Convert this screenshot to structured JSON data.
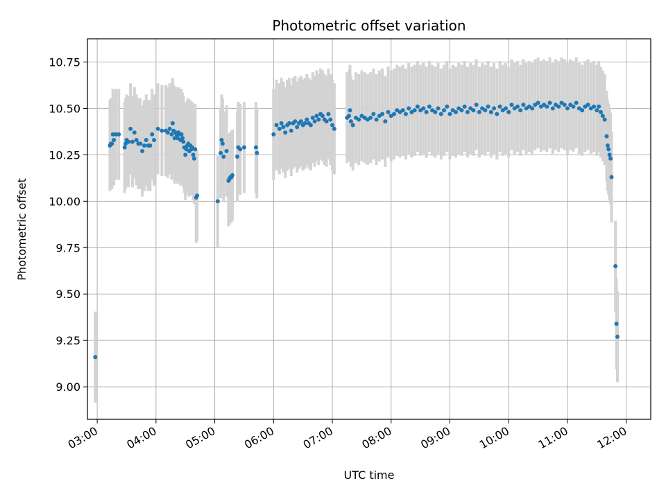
{
  "chart_data": {
    "type": "scatter",
    "title": "Photometric offset variation",
    "xlabel": "UTC time",
    "ylabel": "Photometric offset",
    "xlim": [
      "02:50",
      "12:25"
    ],
    "ylim": [
      8.825,
      10.875
    ],
    "grid": true,
    "x_ticks": [
      "03:00",
      "04:00",
      "05:00",
      "06:00",
      "07:00",
      "08:00",
      "09:00",
      "10:00",
      "11:00",
      "12:00"
    ],
    "y_ticks": [
      "9.00",
      "9.25",
      "9.50",
      "9.75",
      "10.00",
      "10.25",
      "10.50",
      "10.75"
    ],
    "colors": {
      "points": "#1f77b4",
      "error_bars": "#d3d3d3",
      "grid": "#b0b0b0"
    },
    "series": [
      {
        "error_bar_halfwidth": 0.245,
        "points": [
          [
            "02:58",
            9.16
          ],
          [
            "03:13",
            10.3
          ],
          [
            "03:14",
            10.31
          ],
          [
            "03:15",
            10.31
          ],
          [
            "03:16",
            10.36
          ],
          [
            "03:17",
            10.33
          ],
          [
            "03:19",
            10.36
          ],
          [
            "03:22",
            10.36
          ],
          [
            "03:28",
            10.29
          ],
          [
            "03:29",
            10.31
          ],
          [
            "03:30",
            10.33
          ],
          [
            "03:32",
            10.32
          ],
          [
            "03:34",
            10.39
          ],
          [
            "03:36",
            10.32
          ],
          [
            "03:38",
            10.37
          ],
          [
            "03:40",
            10.33
          ],
          [
            "03:42",
            10.31
          ],
          [
            "03:44",
            10.31
          ],
          [
            "03:46",
            10.27
          ],
          [
            "03:48",
            10.3
          ],
          [
            "03:50",
            10.33
          ],
          [
            "03:52",
            10.3
          ],
          [
            "03:54",
            10.3
          ],
          [
            "03:56",
            10.36
          ],
          [
            "03:58",
            10.33
          ],
          [
            "04:02",
            10.39
          ],
          [
            "04:06",
            10.38
          ],
          [
            "04:10",
            10.38
          ],
          [
            "04:12",
            10.37
          ],
          [
            "04:14",
            10.39
          ],
          [
            "04:16",
            10.36
          ],
          [
            "04:17",
            10.42
          ],
          [
            "04:18",
            10.38
          ],
          [
            "04:19",
            10.34
          ],
          [
            "04:20",
            10.37
          ],
          [
            "04:21",
            10.36
          ],
          [
            "04:22",
            10.34
          ],
          [
            "04:23",
            10.37
          ],
          [
            "04:24",
            10.36
          ],
          [
            "04:25",
            10.33
          ],
          [
            "04:26",
            10.36
          ],
          [
            "04:27",
            10.34
          ],
          [
            "04:28",
            10.32
          ],
          [
            "04:29",
            10.29
          ],
          [
            "04:30",
            10.25
          ],
          [
            "04:31",
            10.28
          ],
          [
            "04:32",
            10.3
          ],
          [
            "04:33",
            10.31
          ],
          [
            "04:34",
            10.27
          ],
          [
            "04:35",
            10.3
          ],
          [
            "04:36",
            10.28
          ],
          [
            "04:37",
            10.29
          ],
          [
            "04:38",
            10.25
          ],
          [
            "04:39",
            10.23
          ],
          [
            "04:40",
            10.28
          ],
          [
            "04:41",
            10.02
          ],
          [
            "04:42",
            10.03
          ],
          [
            "05:03",
            10.0
          ],
          [
            "05:06",
            10.26
          ],
          [
            "05:07",
            10.33
          ],
          [
            "05:08",
            10.31
          ],
          [
            "05:09",
            10.24
          ],
          [
            "05:12",
            10.27
          ],
          [
            "05:14",
            10.11
          ],
          [
            "05:15",
            10.12
          ],
          [
            "05:16",
            10.13
          ],
          [
            "05:17",
            10.13
          ],
          [
            "05:18",
            10.14
          ],
          [
            "05:23",
            10.24
          ],
          [
            "05:24",
            10.29
          ],
          [
            "05:26",
            10.28
          ],
          [
            "05:30",
            10.29
          ],
          [
            "05:42",
            10.29
          ],
          [
            "05:43",
            10.26
          ],
          [
            "06:00",
            10.36
          ],
          [
            "06:03",
            10.41
          ],
          [
            "06:06",
            10.39
          ],
          [
            "06:08",
            10.42
          ],
          [
            "06:10",
            10.4
          ],
          [
            "06:12",
            10.37
          ],
          [
            "06:14",
            10.41
          ],
          [
            "06:16",
            10.42
          ],
          [
            "06:18",
            10.38
          ],
          [
            "06:20",
            10.42
          ],
          [
            "06:22",
            10.43
          ],
          [
            "06:24",
            10.4
          ],
          [
            "06:26",
            10.42
          ],
          [
            "06:28",
            10.43
          ],
          [
            "06:30",
            10.41
          ],
          [
            "06:32",
            10.42
          ],
          [
            "06:34",
            10.44
          ],
          [
            "06:36",
            10.42
          ],
          [
            "06:38",
            10.41
          ],
          [
            "06:40",
            10.45
          ],
          [
            "06:42",
            10.43
          ],
          [
            "06:44",
            10.46
          ],
          [
            "06:46",
            10.44
          ],
          [
            "06:48",
            10.47
          ],
          [
            "06:50",
            10.46
          ],
          [
            "06:52",
            10.44
          ],
          [
            "06:54",
            10.43
          ],
          [
            "06:56",
            10.47
          ],
          [
            "06:58",
            10.44
          ],
          [
            "07:00",
            10.41
          ],
          [
            "07:02",
            10.39
          ],
          [
            "07:15",
            10.45
          ],
          [
            "07:17",
            10.46
          ],
          [
            "07:18",
            10.49
          ],
          [
            "07:19",
            10.43
          ],
          [
            "07:21",
            10.41
          ],
          [
            "07:24",
            10.45
          ],
          [
            "07:27",
            10.44
          ],
          [
            "07:30",
            10.46
          ],
          [
            "07:33",
            10.45
          ],
          [
            "07:36",
            10.44
          ],
          [
            "07:39",
            10.45
          ],
          [
            "07:42",
            10.47
          ],
          [
            "07:45",
            10.44
          ],
          [
            "07:48",
            10.46
          ],
          [
            "07:51",
            10.47
          ],
          [
            "07:54",
            10.43
          ],
          [
            "07:57",
            10.48
          ],
          [
            "08:00",
            10.46
          ],
          [
            "08:03",
            10.47
          ],
          [
            "08:06",
            10.49
          ],
          [
            "08:09",
            10.48
          ],
          [
            "08:12",
            10.49
          ],
          [
            "08:15",
            10.47
          ],
          [
            "08:18",
            10.5
          ],
          [
            "08:21",
            10.48
          ],
          [
            "08:24",
            10.49
          ],
          [
            "08:27",
            10.51
          ],
          [
            "08:30",
            10.49
          ],
          [
            "08:33",
            10.5
          ],
          [
            "08:36",
            10.48
          ],
          [
            "08:39",
            10.51
          ],
          [
            "08:42",
            10.49
          ],
          [
            "08:45",
            10.48
          ],
          [
            "08:48",
            10.5
          ],
          [
            "08:51",
            10.47
          ],
          [
            "08:54",
            10.49
          ],
          [
            "08:57",
            10.51
          ],
          [
            "09:00",
            10.47
          ],
          [
            "09:03",
            10.49
          ],
          [
            "09:06",
            10.48
          ],
          [
            "09:09",
            10.5
          ],
          [
            "09:12",
            10.49
          ],
          [
            "09:15",
            10.51
          ],
          [
            "09:18",
            10.48
          ],
          [
            "09:21",
            10.5
          ],
          [
            "09:24",
            10.49
          ],
          [
            "09:27",
            10.52
          ],
          [
            "09:30",
            10.48
          ],
          [
            "09:33",
            10.5
          ],
          [
            "09:36",
            10.49
          ],
          [
            "09:39",
            10.51
          ],
          [
            "09:42",
            10.48
          ],
          [
            "09:45",
            10.5
          ],
          [
            "09:48",
            10.47
          ],
          [
            "09:51",
            10.51
          ],
          [
            "09:54",
            10.49
          ],
          [
            "09:57",
            10.5
          ],
          [
            "10:00",
            10.48
          ],
          [
            "10:03",
            10.52
          ],
          [
            "10:06",
            10.5
          ],
          [
            "10:09",
            10.51
          ],
          [
            "10:12",
            10.49
          ],
          [
            "10:15",
            10.52
          ],
          [
            "10:18",
            10.5
          ],
          [
            "10:21",
            10.51
          ],
          [
            "10:24",
            10.5
          ],
          [
            "10:27",
            10.52
          ],
          [
            "10:30",
            10.53
          ],
          [
            "10:33",
            10.51
          ],
          [
            "10:36",
            10.52
          ],
          [
            "10:39",
            10.51
          ],
          [
            "10:42",
            10.53
          ],
          [
            "10:45",
            10.5
          ],
          [
            "10:48",
            10.52
          ],
          [
            "10:51",
            10.51
          ],
          [
            "10:54",
            10.53
          ],
          [
            "10:57",
            10.52
          ],
          [
            "11:00",
            10.5
          ],
          [
            "11:03",
            10.52
          ],
          [
            "11:06",
            10.51
          ],
          [
            "11:09",
            10.53
          ],
          [
            "11:12",
            10.5
          ],
          [
            "11:15",
            10.49
          ],
          [
            "11:18",
            10.51
          ],
          [
            "11:21",
            10.52
          ],
          [
            "11:24",
            10.5
          ],
          [
            "11:27",
            10.51
          ],
          [
            "11:30",
            10.49
          ],
          [
            "11:32",
            10.51
          ],
          [
            "11:34",
            10.48
          ],
          [
            "11:36",
            10.46
          ],
          [
            "11:38",
            10.44
          ],
          [
            "11:40",
            10.35
          ],
          [
            "11:41",
            10.3
          ],
          [
            "11:42",
            10.28
          ],
          [
            "11:43",
            10.25
          ],
          [
            "11:44",
            10.23
          ],
          [
            "11:45",
            10.13
          ],
          [
            "11:49",
            9.65
          ],
          [
            "11:50",
            9.34
          ],
          [
            "11:51",
            9.27
          ]
        ]
      }
    ]
  }
}
